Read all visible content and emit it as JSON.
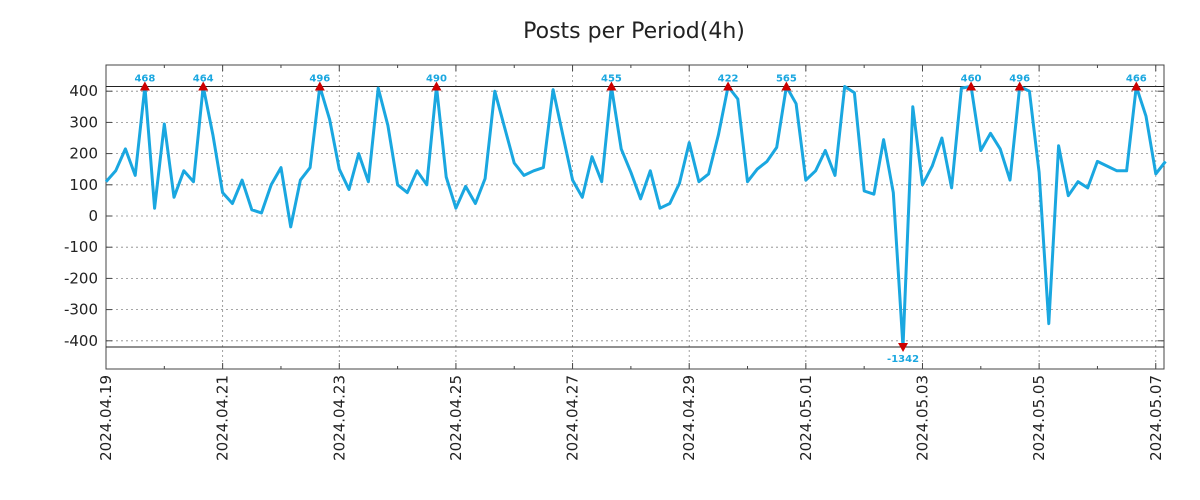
{
  "chart_data": {
    "type": "line",
    "title": "Posts per Period(4h)",
    "xlabel": "",
    "ylabel": "",
    "ylim": [
      -490,
      490
    ],
    "display_clip": [
      -420,
      415
    ],
    "yticks": [
      -400,
      -300,
      -200,
      -100,
      0,
      100,
      200,
      300,
      400
    ],
    "x_start": "2024.04.19",
    "x_step_hours": 4,
    "xticks": [
      "2024.04.19",
      "2024.04.21",
      "2024.04.23",
      "2024.04.25",
      "2024.04.27",
      "2024.04.29",
      "2024.05.01",
      "2024.05.03",
      "2024.05.05",
      "2024.05.07"
    ],
    "series": [
      {
        "name": "Posts",
        "color": "#1aa7e0",
        "values": [
          110,
          145,
          215,
          130,
          468,
          25,
          295,
          60,
          145,
          110,
          464,
          260,
          75,
          40,
          115,
          20,
          10,
          100,
          155,
          -35,
          115,
          155,
          496,
          310,
          150,
          85,
          200,
          110,
          410,
          290,
          100,
          75,
          145,
          100,
          490,
          125,
          25,
          95,
          40,
          120,
          400,
          285,
          170,
          130,
          145,
          155,
          405,
          260,
          115,
          60,
          190,
          110,
          455,
          215,
          140,
          55,
          145,
          25,
          40,
          105,
          235,
          110,
          135,
          260,
          422,
          375,
          110,
          150,
          175,
          220,
          565,
          360,
          115,
          145,
          210,
          130,
          415,
          395,
          80,
          70,
          245,
          75,
          -1342,
          350,
          100,
          160,
          250,
          90,
          410,
          460,
          210,
          265,
          215,
          115,
          496,
          400,
          140,
          -345,
          225,
          65,
          110,
          90,
          175,
          160,
          145,
          145,
          466,
          320,
          135,
          175
        ]
      }
    ],
    "peaks": [
      {
        "index": 4,
        "label": "468",
        "dir": "up"
      },
      {
        "index": 10,
        "label": "464",
        "dir": "up"
      },
      {
        "index": 22,
        "label": "496",
        "dir": "up"
      },
      {
        "index": 34,
        "label": "490",
        "dir": "up"
      },
      {
        "index": 52,
        "label": "455",
        "dir": "up"
      },
      {
        "index": 64,
        "label": "422",
        "dir": "up"
      },
      {
        "index": 70,
        "label": "565",
        "dir": "up"
      },
      {
        "index": 82,
        "label": "-1342",
        "dir": "down"
      },
      {
        "index": 89,
        "label": "460",
        "dir": "up"
      },
      {
        "index": 94,
        "label": "496",
        "dir": "up"
      },
      {
        "index": 106,
        "label": "466",
        "dir": "up"
      }
    ],
    "grid": true,
    "legend": "none"
  }
}
